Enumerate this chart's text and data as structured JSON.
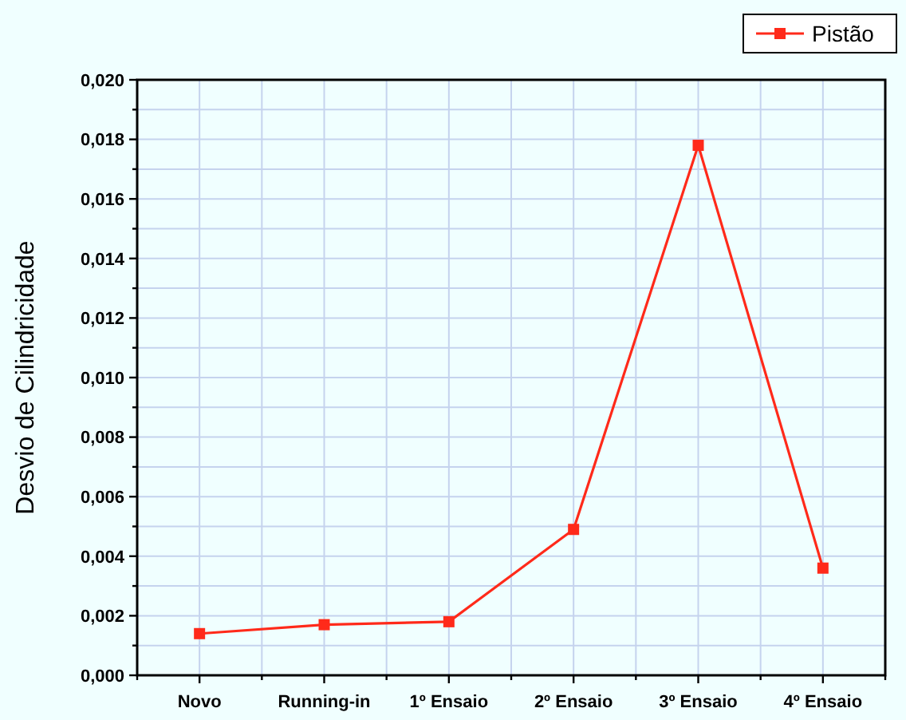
{
  "chart_data": {
    "type": "line",
    "ylabel": "Desvio de Cilindricidade",
    "categories": [
      "Novo",
      "Running-in",
      "1º Ensaio",
      "2º Ensaio",
      "3º Ensaio",
      "4º Ensaio"
    ],
    "series": [
      {
        "name": "Pistão",
        "color": "#ff2a1a",
        "values": [
          0.0014,
          0.0017,
          0.0018,
          0.0049,
          0.0178,
          0.0036
        ]
      }
    ],
    "ylim": [
      0,
      0.02
    ],
    "yticks": [
      "0,000",
      {
        "value": 0.001,
        "label": null
      },
      {
        "value": 0.002,
        "label": "0,002"
      },
      {
        "value": 0.003,
        "label": null
      },
      {
        "value": 0.004,
        "label": "0,004"
      },
      {
        "value": 0.005,
        "label": null
      },
      {
        "value": 0.006,
        "label": "0,006"
      },
      {
        "value": 0.007,
        "label": null
      },
      {
        "value": 0.008,
        "label": "0,008"
      },
      {
        "value": 0.009,
        "label": null
      },
      {
        "value": 0.01,
        "label": "0,010"
      },
      {
        "value": 0.011,
        "label": null
      },
      {
        "value": 0.012,
        "label": "0,012"
      },
      {
        "value": 0.013,
        "label": null
      },
      {
        "value": 0.014,
        "label": "0,014"
      },
      {
        "value": 0.015,
        "label": null
      },
      {
        "value": 0.016,
        "label": "0,016"
      },
      {
        "value": 0.017,
        "label": null
      },
      {
        "value": 0.018,
        "label": "0,018"
      },
      {
        "value": 0.019,
        "label": null
      },
      {
        "value": 0.02,
        "label": "0,020"
      }
    ],
    "grid": true,
    "legend": "top right",
    "marker": "square",
    "line_style": "solid"
  }
}
